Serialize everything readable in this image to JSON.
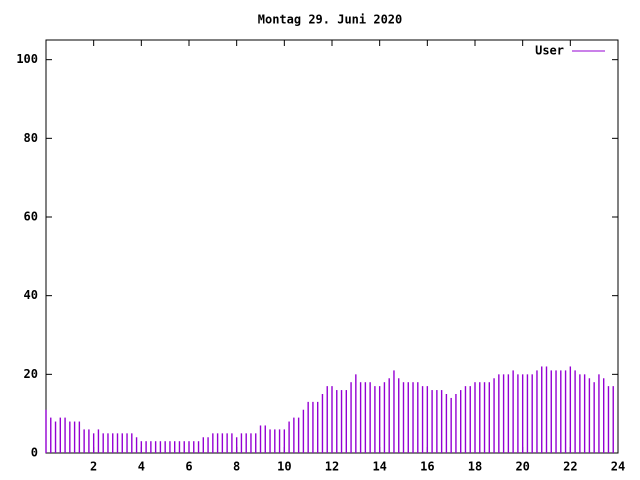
{
  "chart_data": {
    "type": "impulses",
    "title": "Montag 29. Juni 2020",
    "x": [
      0,
      0.2,
      0.4,
      0.6,
      0.8,
      1,
      1.2,
      1.4,
      1.6,
      1.8,
      2,
      2.2,
      2.4,
      2.6,
      2.8,
      3,
      3.2,
      3.4,
      3.6,
      3.8,
      4,
      4.2,
      4.4,
      4.6,
      4.8,
      5,
      5.2,
      5.4,
      5.6,
      5.8,
      6,
      6.2,
      6.4,
      6.6,
      6.8,
      7,
      7.2,
      7.4,
      7.6,
      7.8,
      8,
      8.2,
      8.4,
      8.6,
      8.8,
      9,
      9.2,
      9.4,
      9.6,
      9.8,
      10,
      10.2,
      10.4,
      10.6,
      10.8,
      11,
      11.2,
      11.4,
      11.6,
      11.8,
      12,
      12.2,
      12.4,
      12.6,
      12.8,
      13,
      13.2,
      13.4,
      13.6,
      13.8,
      14,
      14.2,
      14.4,
      14.6,
      14.8,
      15,
      15.2,
      15.4,
      15.6,
      15.8,
      16,
      16.2,
      16.4,
      16.6,
      16.8,
      17,
      17.2,
      17.4,
      17.6,
      17.8,
      18,
      18.2,
      18.4,
      18.6,
      18.8,
      19,
      19.2,
      19.4,
      19.6,
      19.8,
      20,
      20.2,
      20.4,
      20.6,
      20.8,
      21,
      21.2,
      21.4,
      21.6,
      21.8,
      22,
      22.2,
      22.4,
      22.6,
      22.8,
      23,
      23.2,
      23.4,
      23.6,
      23.8
    ],
    "series": [
      {
        "name": "User",
        "color": "#9400d3",
        "values": [
          11,
          9,
          8,
          9,
          9,
          8,
          8,
          8,
          6,
          6,
          5,
          6,
          5,
          5,
          5,
          5,
          5,
          5,
          5,
          4,
          3,
          3,
          3,
          3,
          3,
          3,
          3,
          3,
          3,
          3,
          3,
          3,
          3,
          4,
          4,
          5,
          5,
          5,
          5,
          5,
          4,
          5,
          5,
          5,
          5,
          7,
          7,
          6,
          6,
          6,
          6,
          8,
          9,
          9,
          11,
          13,
          13,
          13,
          15,
          17,
          17,
          16,
          16,
          16,
          18,
          20,
          18,
          18,
          18,
          17,
          17,
          18,
          19,
          21,
          19,
          18,
          18,
          18,
          18,
          17,
          17,
          16,
          16,
          16,
          15,
          14,
          15,
          16,
          17,
          17,
          18,
          18,
          18,
          18,
          19,
          20,
          20,
          20,
          21,
          20,
          20,
          20,
          20,
          21,
          22,
          22,
          21,
          21,
          21,
          21,
          22,
          21,
          20,
          20,
          19,
          18,
          20,
          19,
          17,
          17
        ]
      }
    ],
    "xlim": [
      0,
      24
    ],
    "xticks": [
      2,
      4,
      6,
      8,
      10,
      12,
      14,
      16,
      18,
      20,
      22,
      24
    ],
    "ylim": [
      0,
      105
    ],
    "yticks": [
      0,
      20,
      40,
      60,
      80,
      100
    ],
    "grid": false,
    "legend": "top-right"
  }
}
